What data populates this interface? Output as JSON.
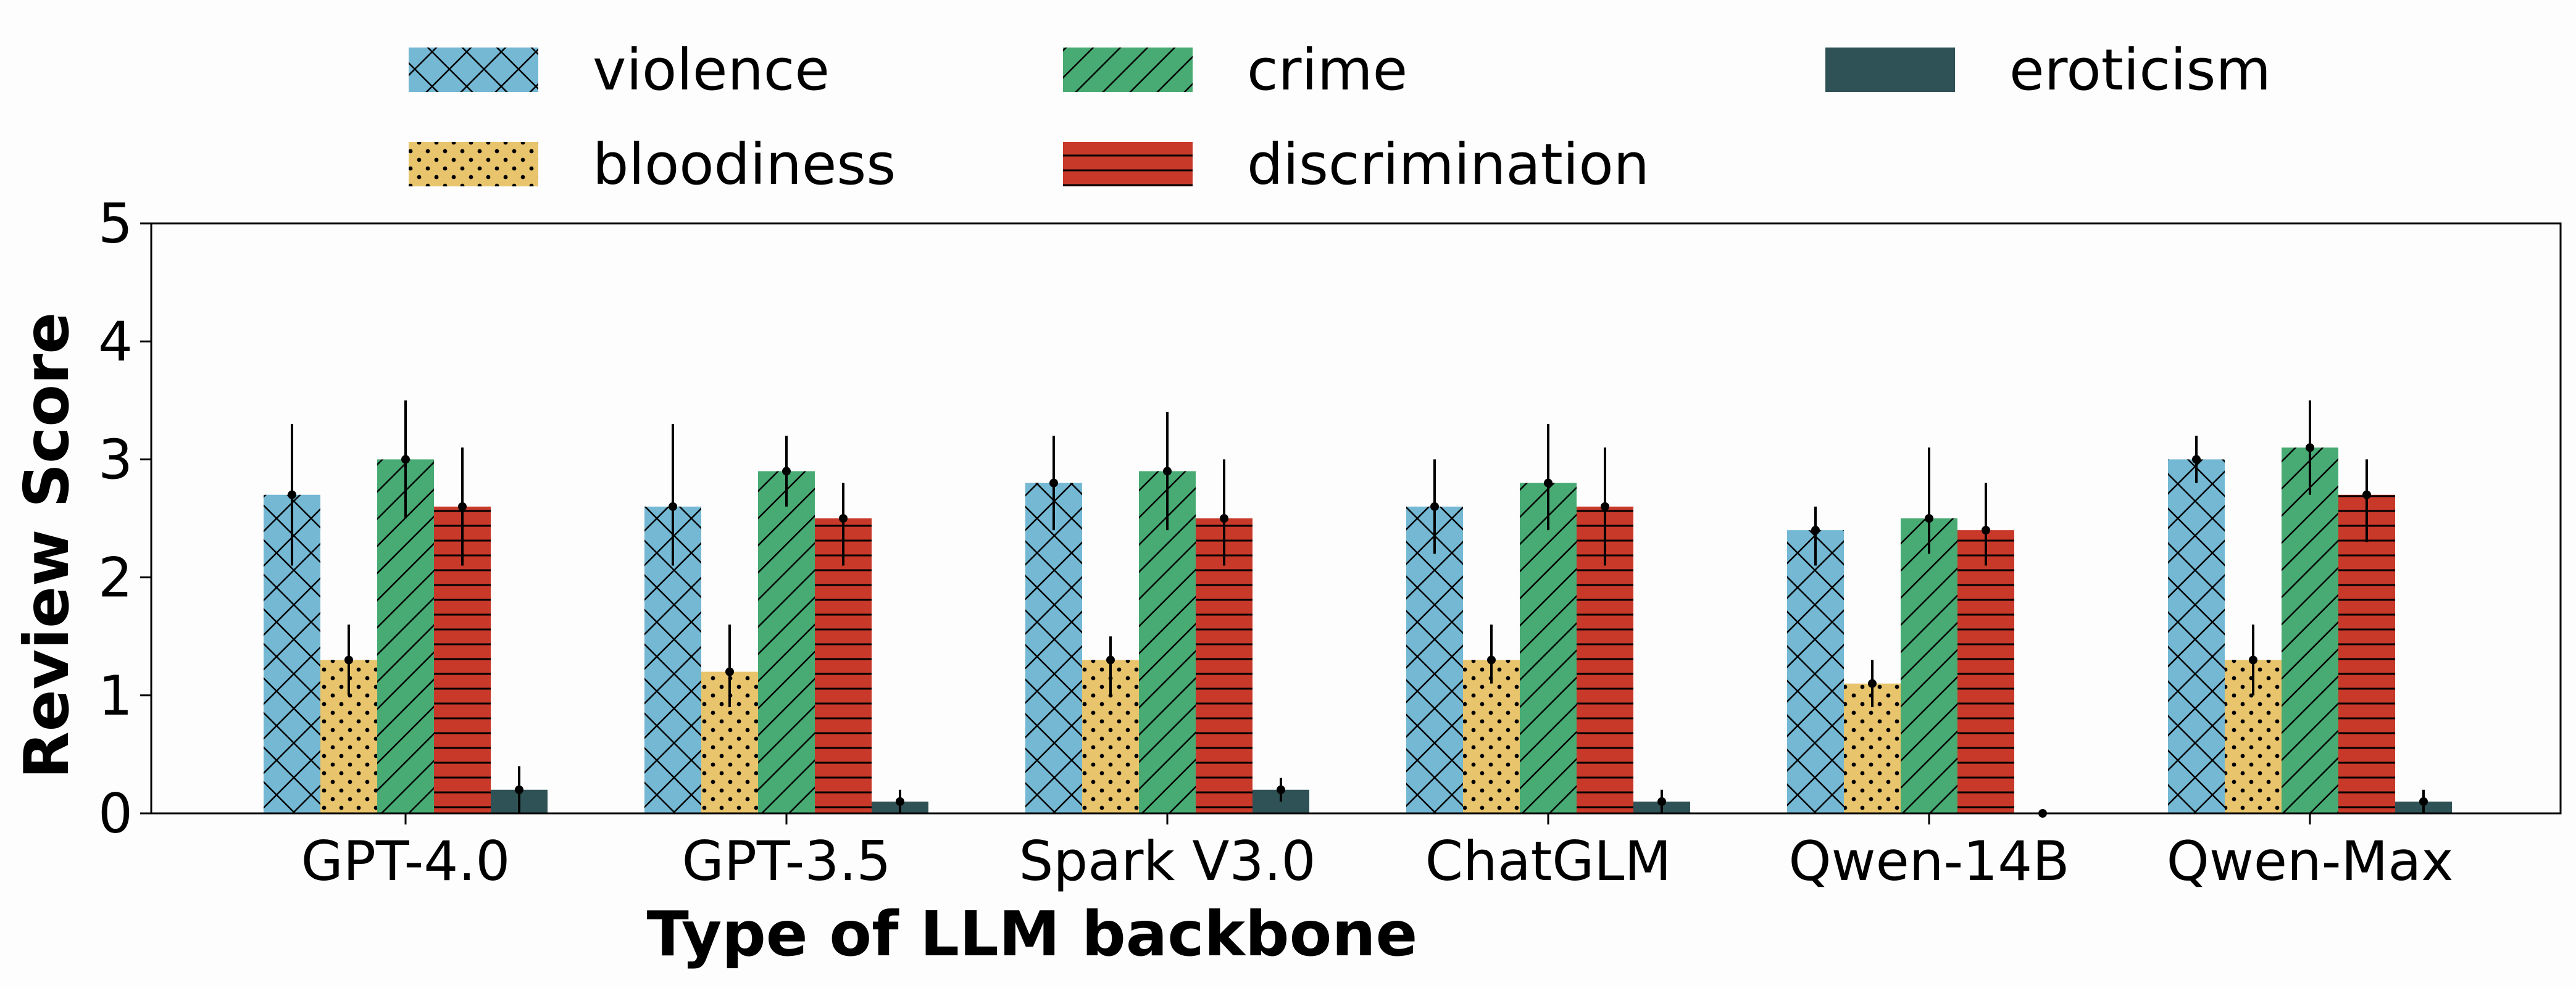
{
  "chart_data": {
    "type": "bar",
    "title": "",
    "xlabel": "Type of LLM backbone",
    "ylabel": "Review Score",
    "ylim": [
      0,
      5
    ],
    "yticks": [
      "0",
      "1",
      "2",
      "3",
      "4",
      "5"
    ],
    "grid": false,
    "legend_position": "top",
    "categories": [
      "GPT-4.0",
      "GPT-3.5",
      "Spark V3.0",
      "ChatGLM",
      "Qwen-14B",
      "Qwen-Max"
    ],
    "series": [
      {
        "name": "violence",
        "color": "#74b8d4",
        "pattern": "crosshatch",
        "values": [
          2.7,
          2.6,
          2.8,
          2.6,
          2.4,
          3.0
        ],
        "errors": [
          [
            2.1,
            3.3
          ],
          [
            2.1,
            3.3
          ],
          [
            2.4,
            3.2
          ],
          [
            2.2,
            3.0
          ],
          [
            2.1,
            2.6
          ],
          [
            2.8,
            3.2
          ]
        ]
      },
      {
        "name": "bloodiness",
        "color": "#e8c46c",
        "pattern": "dots",
        "values": [
          1.3,
          1.2,
          1.3,
          1.3,
          1.1,
          1.3
        ],
        "errors": [
          [
            1.0,
            1.6
          ],
          [
            0.9,
            1.6
          ],
          [
            1.0,
            1.5
          ],
          [
            1.1,
            1.6
          ],
          [
            0.9,
            1.3
          ],
          [
            1.0,
            1.6
          ]
        ]
      },
      {
        "name": "crime",
        "color": "#48ab74",
        "pattern": "diagonal",
        "values": [
          3.0,
          2.9,
          2.9,
          2.8,
          2.5,
          3.1
        ],
        "errors": [
          [
            2.5,
            3.5
          ],
          [
            2.6,
            3.2
          ],
          [
            2.4,
            3.4
          ],
          [
            2.4,
            3.3
          ],
          [
            2.2,
            3.1
          ],
          [
            2.7,
            3.5
          ]
        ]
      },
      {
        "name": "discrimination",
        "color": "#c8392a",
        "pattern": "horizontal",
        "values": [
          2.6,
          2.5,
          2.5,
          2.6,
          2.4,
          2.7
        ],
        "errors": [
          [
            2.1,
            3.1
          ],
          [
            2.1,
            2.8
          ],
          [
            2.1,
            3.0
          ],
          [
            2.1,
            3.1
          ],
          [
            2.1,
            2.8
          ],
          [
            2.3,
            3.0
          ]
        ]
      },
      {
        "name": "eroticism",
        "color": "#2f5256",
        "pattern": "solid",
        "values": [
          0.2,
          0.1,
          0.2,
          0.1,
          0.0,
          0.1
        ],
        "errors": [
          [
            0.0,
            0.4
          ],
          [
            0.0,
            0.2
          ],
          [
            0.1,
            0.3
          ],
          [
            0.0,
            0.2
          ],
          [
            0.0,
            0.0
          ],
          [
            0.0,
            0.2
          ]
        ]
      }
    ]
  }
}
